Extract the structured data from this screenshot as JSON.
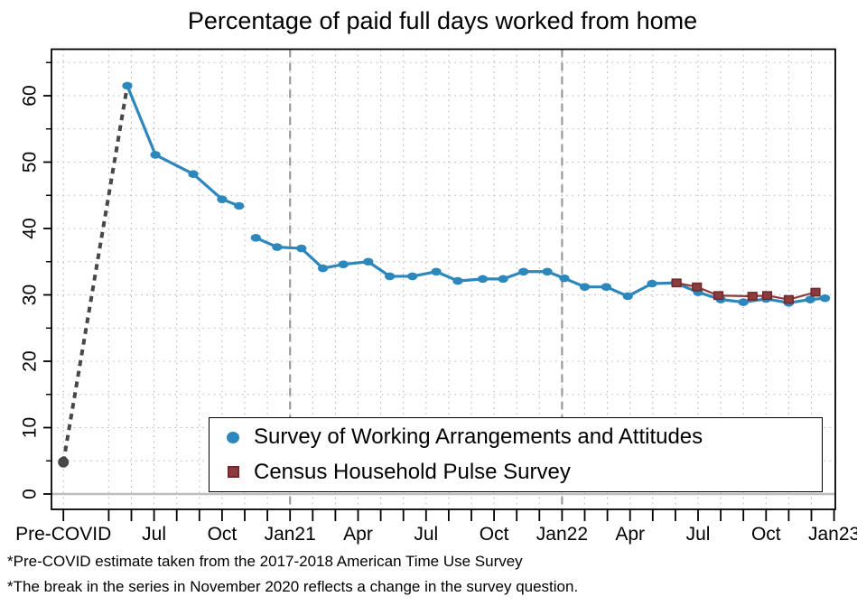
{
  "title": "Percentage of paid full days worked from home",
  "footnotes": [
    "*Pre-COVID estimate taken from the 2017-2018 American Time Use Survey",
    "*The break in the series in November 2020 reflects a change in the survey question."
  ],
  "colors": {
    "swaa_blue": "#2c87bc",
    "chps_red": "#8e3b3d",
    "chps_red_border": "#6e2b2d",
    "pre_covid_gray": "#474747",
    "grid": "#b8b8b8",
    "ref_line": "#9a9a9a",
    "zero_line": "#bdbdbd",
    "frame": "#000000"
  },
  "chart_data": {
    "type": "line",
    "title": "Percentage of paid full days worked from home",
    "xlabel": "",
    "ylabel": "",
    "grid": "dotted, every 5 units horizontal and every month vertical",
    "legend_position": "inside bottom center, boxed",
    "y_ticks": [
      0,
      10,
      20,
      30,
      40,
      50,
      60
    ],
    "y_minor_tick_step": 5,
    "y_axis_range": [
      -2.2,
      66.9
    ],
    "x_unit": "months since May 2020; Pre-COVID category plotted at -2",
    "x_ticks": [
      {
        "m": -2,
        "label": "Pre-COVID"
      },
      {
        "m": 2,
        "label": "Jul"
      },
      {
        "m": 5,
        "label": "Oct"
      },
      {
        "m": 8,
        "label": "Jan21"
      },
      {
        "m": 11,
        "label": "Apr"
      },
      {
        "m": 14,
        "label": "Jul"
      },
      {
        "m": 17,
        "label": "Oct"
      },
      {
        "m": 20,
        "label": "Jan22"
      },
      {
        "m": 23,
        "label": "Apr"
      },
      {
        "m": 26,
        "label": "Jul"
      },
      {
        "m": 29,
        "label": "Oct"
      },
      {
        "m": 32,
        "label": "Jan23"
      }
    ],
    "x_minor_tick_months": {
      "from": 0,
      "to": 32
    },
    "reference_lines_m": [
      8,
      20
    ],
    "pre_covid_point": {
      "label": "Pre-COVID",
      "m": -2,
      "value": 4.8,
      "connector": "dashed line to first SWAA point"
    },
    "series": [
      {
        "name": "Survey of Working Arrangements and Attitudes",
        "marker": "circle",
        "color": "#2c87bc",
        "segments": [
          [
            {
              "t": "May 2020",
              "m": 0.82,
              "v": 61.5
            },
            {
              "t": "Jul 2020",
              "m": 2.06,
              "v": 51.1
            },
            {
              "t": "Aug 2020",
              "m": 3.73,
              "v": 48.2
            },
            {
              "t": "Sep 2020",
              "m": 5.0,
              "v": 44.4
            },
            {
              "t": "Oct 2020",
              "m": 5.75,
              "v": 43.4
            }
          ],
          [
            {
              "t": "Nov 2020",
              "m": 6.49,
              "v": 38.6
            },
            {
              "t": "Dec 2020",
              "m": 7.43,
              "v": 37.2
            },
            {
              "t": "Jan 2021",
              "m": 8.5,
              "v": 37.0
            },
            {
              "t": "Feb 2021",
              "m": 9.45,
              "v": 34.0
            },
            {
              "t": "Mar 2021",
              "m": 10.35,
              "v": 34.6
            },
            {
              "t": "Apr 2021",
              "m": 11.45,
              "v": 35.0
            },
            {
              "t": "May 2021",
              "m": 12.4,
              "v": 32.8
            },
            {
              "t": "Jun 2021",
              "m": 13.4,
              "v": 32.8
            },
            {
              "t": "Jul 2021",
              "m": 14.45,
              "v": 33.5
            },
            {
              "t": "Aug 2021",
              "m": 15.4,
              "v": 32.1
            },
            {
              "t": "Sep 2021",
              "m": 16.5,
              "v": 32.4
            },
            {
              "t": "Oct 2021",
              "m": 17.4,
              "v": 32.4
            },
            {
              "t": "Nov 2021",
              "m": 18.3,
              "v": 33.5
            },
            {
              "t": "Dec 2021",
              "m": 19.35,
              "v": 33.5
            },
            {
              "t": "Jan 2022",
              "m": 20.1,
              "v": 32.5
            },
            {
              "t": "Feb 2022",
              "m": 21.0,
              "v": 31.2
            },
            {
              "t": "Mar 2022",
              "m": 21.95,
              "v": 31.2
            },
            {
              "t": "Apr 2022",
              "m": 22.9,
              "v": 29.8
            },
            {
              "t": "May 2022",
              "m": 23.97,
              "v": 31.7
            },
            {
              "t": "Jun 2022",
              "m": 25.0,
              "v": 31.8
            },
            {
              "t": "Jul 2022",
              "m": 26.0,
              "v": 30.4
            },
            {
              "t": "Aug 2022",
              "m": 27.0,
              "v": 29.3
            },
            {
              "t": "Sep 2022",
              "m": 28.0,
              "v": 28.9
            },
            {
              "t": "Oct 2022",
              "m": 29.0,
              "v": 29.4
            },
            {
              "t": "Nov 2022",
              "m": 30.0,
              "v": 28.8
            },
            {
              "t": "Dec 2022",
              "m": 30.95,
              "v": 29.3
            },
            {
              "t": "Jan 2023",
              "m": 31.6,
              "v": 29.5
            }
          ]
        ]
      },
      {
        "name": "Census Household Pulse Survey",
        "marker": "square",
        "color": "#8e3b3d",
        "border_color": "#6e2b2d",
        "points": [
          {
            "t": "Jun 2022",
            "m": 25.05,
            "v": 31.8
          },
          {
            "t": "Jul 2022",
            "m": 25.95,
            "v": 31.2
          },
          {
            "t": "Aug 2022",
            "m": 26.9,
            "v": 29.9
          },
          {
            "t": "Sep 2022",
            "m": 28.4,
            "v": 29.8
          },
          {
            "t": "Oct 2022",
            "m": 29.05,
            "v": 29.9
          },
          {
            "t": "Nov 2022",
            "m": 30.0,
            "v": 29.3
          },
          {
            "t": "Dec 2022",
            "m": 31.18,
            "v": 30.4
          }
        ]
      }
    ]
  }
}
